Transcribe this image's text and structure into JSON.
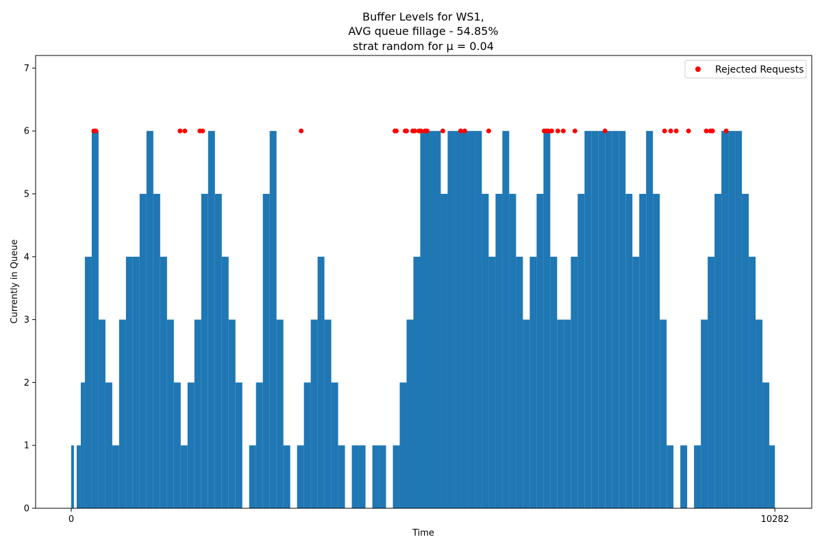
{
  "chart_data": {
    "type": "area",
    "title_lines": [
      "Buffer Levels for WS1,",
      "AVG queue fillage - 54.85%",
      "strat random for μ = 0.04"
    ],
    "xlabel": "Time",
    "ylabel": "Currently in Queue",
    "xlim": [
      -520,
      10820
    ],
    "ylim": [
      0,
      7.2
    ],
    "x_ticks": [
      0,
      10282
    ],
    "y_ticks": [
      0,
      1,
      2,
      3,
      4,
      5,
      6,
      7
    ],
    "grid": false,
    "legend_position": "top-right",
    "colors": {
      "fill": "#1f77b4",
      "rejected": "#ff0000"
    },
    "series": [
      {
        "name": "",
        "x": [
          0,
          40,
          80,
          140,
          200,
          300,
          400,
          500,
          600,
          700,
          800,
          900,
          1000,
          1100,
          1200,
          1300,
          1400,
          1500,
          1600,
          1700,
          1800,
          1900,
          2000,
          2100,
          2200,
          2300,
          2400,
          2500,
          2600,
          2700,
          2800,
          2900,
          3000,
          3100,
          3200,
          3300,
          3400,
          3500,
          3600,
          3700,
          3800,
          3900,
          4000,
          4100,
          4200,
          4300,
          4400,
          4500,
          4600,
          4700,
          4800,
          4900,
          5000,
          5100,
          5200,
          5300,
          5400,
          5500,
          5600,
          5700,
          5800,
          5900,
          6000,
          6100,
          6200,
          6300,
          6400,
          6500,
          6600,
          6700,
          6800,
          6900,
          7000,
          7100,
          7200,
          7300,
          7400,
          7500,
          7600,
          7700,
          7800,
          7900,
          8000,
          8100,
          8200,
          8300,
          8400,
          8500,
          8600,
          8700,
          8800,
          8900,
          9000,
          9100,
          9200,
          9300,
          9400,
          9500,
          9600,
          9700,
          9800,
          9900,
          10000,
          10100,
          10200,
          10282
        ],
        "values": [
          1,
          0,
          1,
          2,
          4,
          6,
          3,
          2,
          1,
          3,
          4,
          4,
          5,
          6,
          5,
          4,
          3,
          2,
          1,
          2,
          3,
          5,
          6,
          5,
          4,
          3,
          2,
          0,
          1,
          2,
          5,
          6,
          3,
          1,
          0,
          1,
          2,
          3,
          4,
          3,
          2,
          1,
          0,
          1,
          1,
          0,
          1,
          1,
          0,
          1,
          2,
          3,
          4,
          6,
          6,
          6,
          5,
          6,
          6,
          6,
          6,
          6,
          5,
          4,
          5,
          6,
          5,
          4,
          3,
          4,
          5,
          6,
          4,
          3,
          3,
          4,
          5,
          6,
          6,
          6,
          6,
          6,
          6,
          5,
          4,
          5,
          6,
          5,
          3,
          1,
          0,
          1,
          0,
          1,
          3,
          4,
          5,
          6,
          6,
          6,
          5,
          4,
          3,
          2,
          1,
          0
        ]
      }
    ],
    "rejected_requests": {
      "name": "Rejected Requests",
      "x": [
        330,
        360,
        1590,
        1660,
        1880,
        1920,
        3360,
        4730,
        4750,
        4880,
        4900,
        4990,
        5020,
        5080,
        5110,
        5170,
        5200,
        5430,
        5690,
        5750,
        6100,
        6910,
        6940,
        6970,
        7020,
        7110,
        7190,
        7360,
        7800,
        8670,
        8760,
        8840,
        9020,
        9280,
        9340,
        9370,
        9570
      ],
      "y": [
        6,
        6,
        6,
        6,
        6,
        6,
        6,
        6,
        6,
        6,
        6,
        6,
        6,
        6,
        6,
        6,
        6,
        6,
        6,
        6,
        6,
        6,
        6,
        6,
        6,
        6,
        6,
        6,
        6,
        6,
        6,
        6,
        6,
        6,
        6,
        6,
        6
      ]
    }
  }
}
